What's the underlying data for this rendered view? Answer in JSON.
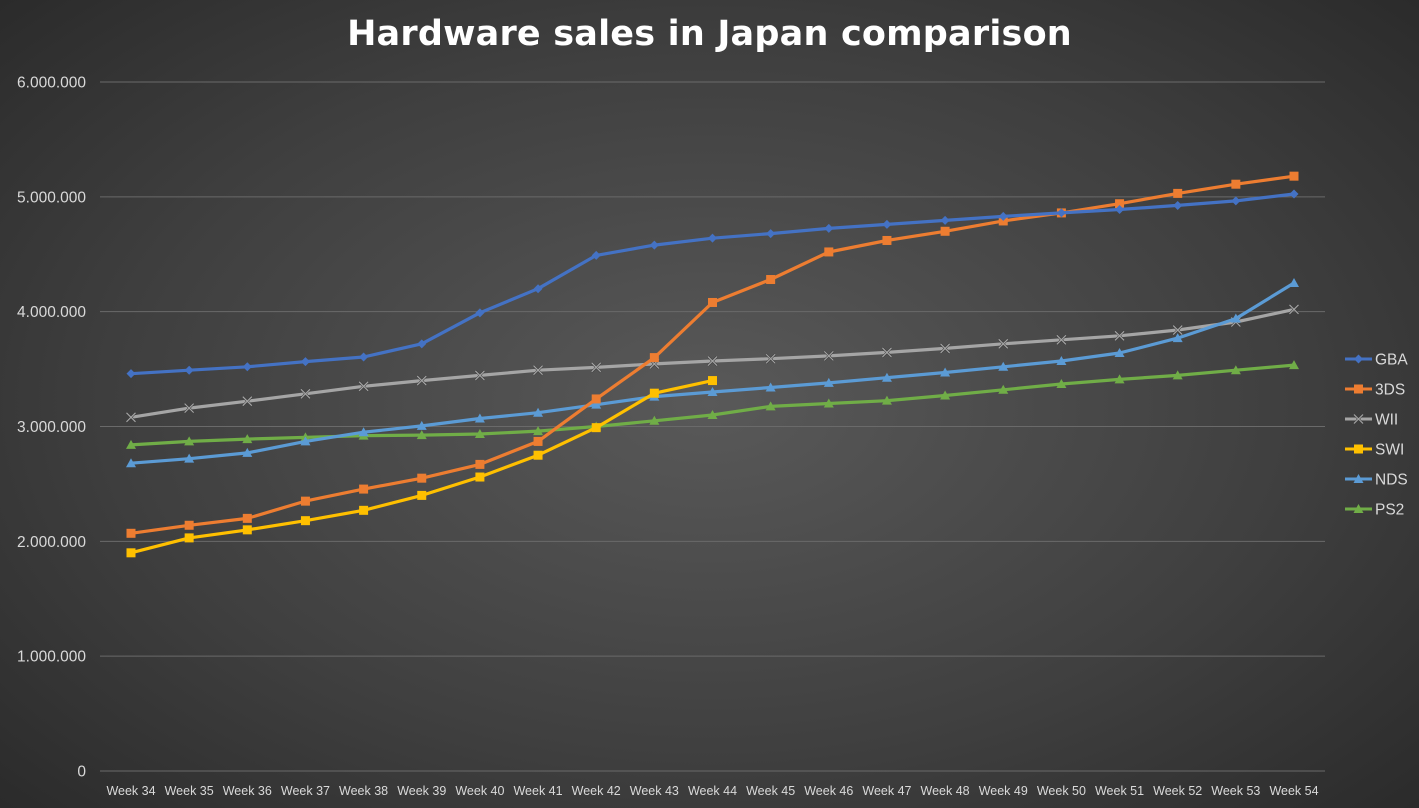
{
  "title": "Hardware sales in Japan comparison",
  "chart_data": {
    "type": "line",
    "title": "Hardware sales in Japan comparison",
    "xlabel": "",
    "ylabel": "",
    "categories": [
      "Week 34",
      "Week 35",
      "Week 36",
      "Week 37",
      "Week 38",
      "Week 39",
      "Week 40",
      "Week 41",
      "Week 42",
      "Week 43",
      "Week 44",
      "Week 45",
      "Week 46",
      "Week 47",
      "Week 48",
      "Week 49",
      "Week 50",
      "Week 51",
      "Week 52",
      "Week 53",
      "Week 54"
    ],
    "ylim": [
      0,
      6000000
    ],
    "yticks": [
      0,
      1000000,
      2000000,
      3000000,
      4000000,
      5000000,
      6000000
    ],
    "ytick_labels": [
      "0",
      "1.000.000",
      "2.000.000",
      "3.000.000",
      "4.000.000",
      "5.000.000",
      "6.000.000"
    ],
    "grid": true,
    "legend_position": "right",
    "series": [
      {
        "name": "GBA",
        "color": "#4472c4",
        "marker": "diamond",
        "values": [
          3460000,
          3490000,
          3520000,
          3565000,
          3605000,
          3720000,
          3990000,
          4200000,
          4490000,
          4580000,
          4640000,
          4680000,
          4725000,
          4760000,
          4795000,
          4830000,
          4860000,
          4890000,
          4925000,
          4965000,
          5025000
        ]
      },
      {
        "name": "3DS",
        "color": "#ed7d31",
        "marker": "square",
        "values": [
          2070000,
          2140000,
          2200000,
          2350000,
          2455000,
          2550000,
          2670000,
          2870000,
          3240000,
          3600000,
          4080000,
          4280000,
          4520000,
          4620000,
          4700000,
          4790000,
          4860000,
          4940000,
          5030000,
          5110000,
          5180000
        ]
      },
      {
        "name": "WII",
        "color": "#a5a5a5",
        "marker": "x",
        "values": [
          3080000,
          3160000,
          3220000,
          3285000,
          3350000,
          3400000,
          3445000,
          3490000,
          3515000,
          3545000,
          3570000,
          3590000,
          3615000,
          3645000,
          3680000,
          3720000,
          3755000,
          3790000,
          3840000,
          3910000,
          4020000
        ]
      },
      {
        "name": "SWI",
        "color": "#ffc000",
        "marker": "square",
        "values": [
          1900000,
          2030000,
          2100000,
          2180000,
          2270000,
          2400000,
          2560000,
          2750000,
          2990000,
          3290000,
          3400000,
          null,
          null,
          null,
          null,
          null,
          null,
          null,
          null,
          null,
          null
        ]
      },
      {
        "name": "NDS",
        "color": "#5b9bd5",
        "marker": "triangle",
        "values": [
          2680000,
          2720000,
          2770000,
          2870000,
          2950000,
          3005000,
          3070000,
          3120000,
          3190000,
          3260000,
          3300000,
          3340000,
          3380000,
          3425000,
          3470000,
          3520000,
          3570000,
          3640000,
          3770000,
          3940000,
          4250000
        ]
      },
      {
        "name": "PS2",
        "color": "#70ad47",
        "marker": "triangle",
        "values": [
          2840000,
          2870000,
          2890000,
          2905000,
          2920000,
          2925000,
          2935000,
          2960000,
          3000000,
          3050000,
          3100000,
          3175000,
          3200000,
          3225000,
          3270000,
          3320000,
          3370000,
          3410000,
          3445000,
          3490000,
          3535000
        ]
      }
    ]
  }
}
